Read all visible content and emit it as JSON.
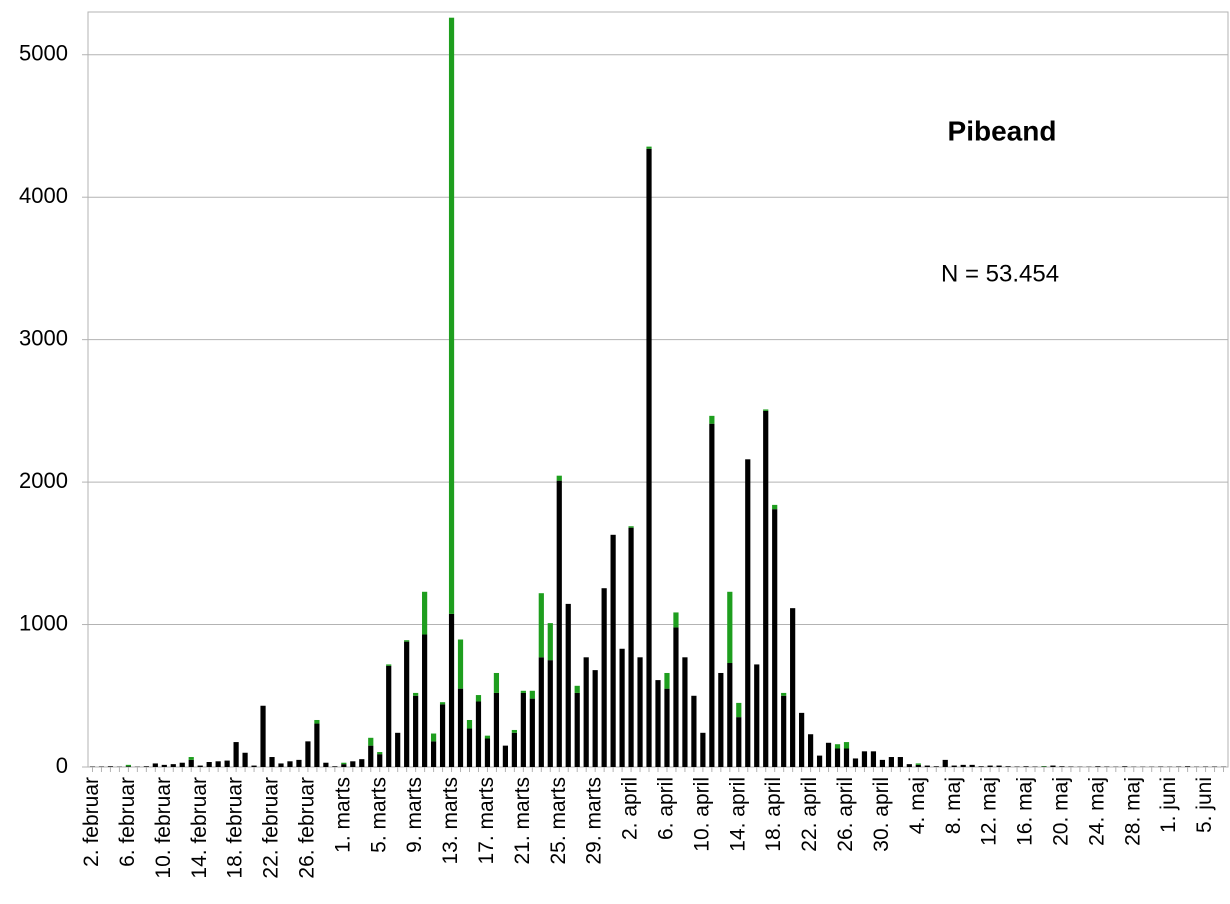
{
  "chart_data": {
    "type": "stacked_bar",
    "title": "Pibeand",
    "annotation": "N = 53.454",
    "categories": [
      "2. februar",
      null,
      null,
      null,
      "6. februar",
      null,
      null,
      null,
      "10. februar",
      null,
      null,
      null,
      "14. februar",
      null,
      null,
      null,
      "18. februar",
      null,
      null,
      null,
      "22. februar",
      null,
      null,
      null,
      "26. februar",
      null,
      null,
      null,
      "1. marts",
      null,
      null,
      null,
      "5. marts",
      null,
      null,
      null,
      "9. marts",
      null,
      null,
      null,
      "13. marts",
      null,
      null,
      null,
      "17. marts",
      null,
      null,
      null,
      "21. marts",
      null,
      null,
      null,
      "25. marts",
      null,
      null,
      null,
      "29. marts",
      null,
      null,
      null,
      "2. april",
      null,
      null,
      null,
      "6. april",
      null,
      null,
      null,
      "10. april",
      null,
      null,
      null,
      "14. april",
      null,
      null,
      null,
      "18. april",
      null,
      null,
      null,
      "22. april",
      null,
      null,
      null,
      "26. april",
      null,
      null,
      null,
      "30. april",
      null,
      null,
      null,
      "4. maj",
      null,
      null,
      null,
      "8. maj",
      null,
      null,
      null,
      "12. maj",
      null,
      null,
      null,
      "16. maj",
      null,
      null,
      null,
      "20. maj",
      null,
      null,
      null,
      "24. maj",
      null,
      null,
      null,
      "28. maj",
      null,
      null,
      null,
      "1. juni",
      null,
      null,
      null,
      "5. juni",
      null,
      null
    ],
    "series": [
      {
        "color": "#000000",
        "values": [
          3,
          3,
          5,
          2,
          5,
          2,
          5,
          25,
          15,
          20,
          30,
          50,
          10,
          35,
          40,
          45,
          175,
          100,
          10,
          430,
          70,
          25,
          40,
          50,
          180,
          305,
          30,
          5,
          20,
          40,
          55,
          150,
          90,
          710,
          240,
          880,
          500,
          930,
          180,
          440,
          1075,
          550,
          270,
          460,
          200,
          520,
          150,
          240,
          520,
          480,
          770,
          750,
          2010,
          1145,
          520,
          770,
          680,
          1255,
          1630,
          830,
          1680,
          770,
          4340,
          610,
          550,
          980,
          770,
          500,
          240,
          2410,
          660,
          730,
          350,
          2160,
          720,
          2500,
          1810,
          500,
          1115,
          380,
          230,
          80,
          170,
          130,
          130,
          60,
          110,
          110,
          50,
          70,
          70,
          20,
          15,
          10,
          5,
          50,
          10,
          15,
          15,
          5,
          10,
          10,
          5,
          3,
          5,
          3,
          3,
          10,
          5,
          3,
          2,
          2,
          5,
          3,
          2,
          5,
          2,
          2,
          2,
          3,
          2,
          3,
          5,
          2,
          3,
          3,
          2
        ]
      },
      {
        "color": "#1e9e1e",
        "values": [
          0,
          0,
          0,
          0,
          10,
          0,
          0,
          0,
          0,
          0,
          0,
          20,
          0,
          0,
          0,
          0,
          0,
          0,
          0,
          0,
          0,
          0,
          0,
          0,
          0,
          25,
          0,
          0,
          10,
          0,
          0,
          55,
          15,
          10,
          0,
          10,
          20,
          300,
          55,
          15,
          4185,
          345,
          60,
          45,
          20,
          140,
          0,
          20,
          15,
          55,
          450,
          260,
          35,
          0,
          50,
          0,
          0,
          0,
          0,
          0,
          10,
          0,
          15,
          0,
          110,
          105,
          0,
          0,
          0,
          55,
          0,
          500,
          100,
          0,
          0,
          10,
          30,
          20,
          0,
          0,
          0,
          0,
          0,
          30,
          45,
          0,
          0,
          0,
          0,
          0,
          0,
          0,
          10,
          0,
          0,
          0,
          0,
          0,
          0,
          0,
          0,
          0,
          0,
          0,
          0,
          0,
          3,
          0,
          0,
          0,
          0,
          0,
          0,
          0,
          0,
          0,
          0,
          0,
          0,
          0,
          0,
          0,
          0,
          0,
          0,
          0,
          0
        ]
      }
    ],
    "ylim": [
      0,
      5300
    ],
    "yticks": [
      0,
      1000,
      2000,
      3000,
      4000,
      5000
    ],
    "grid": true
  }
}
